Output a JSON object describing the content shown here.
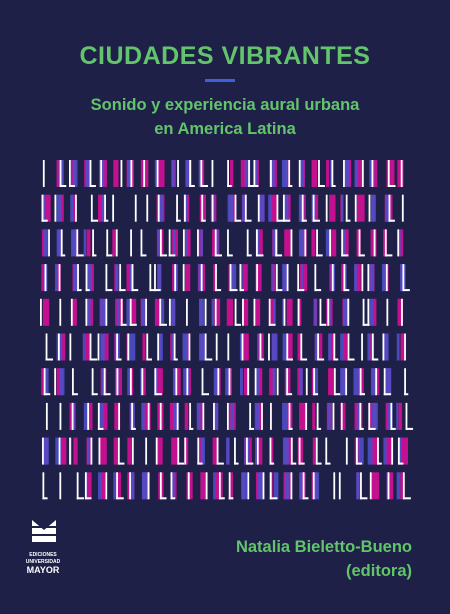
{
  "cover": {
    "title": "CIUDADES VIBRANTES",
    "subtitle_lines": [
      "Sonido y experiencia aural urbana",
      "en America Latina"
    ],
    "publisher": {
      "lines": [
        "EDICIONES",
        "UNIVERSIDAD",
        "MAYOR"
      ]
    },
    "author": "Natalia Bieletto-Bueno",
    "role": "(editora)"
  }
}
